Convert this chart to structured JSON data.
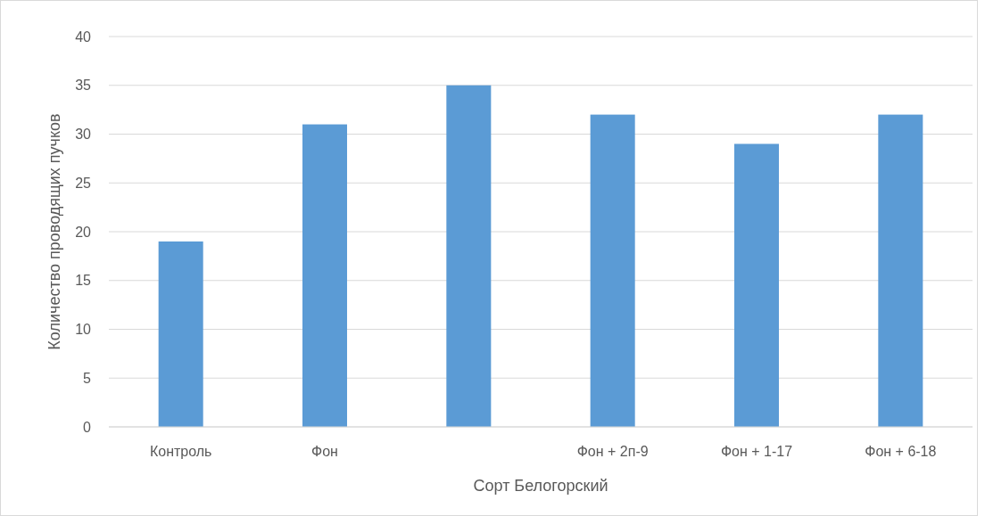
{
  "chart_data": {
    "type": "bar",
    "xlabel": "Сорт Белогорский",
    "ylabel": "Количество проводящих пучков",
    "categories": [
      "Контроль",
      "Фон",
      null,
      "Фон + 2п-9",
      "Фон + 1-17",
      "Фон + 6-18"
    ],
    "values": [
      19,
      31,
      35,
      32,
      29,
      32
    ],
    "color": "#5b9bd5",
    "ylim": [
      0,
      40
    ],
    "yticks": [
      0,
      5,
      10,
      15,
      20,
      25,
      30,
      35,
      40
    ],
    "grid": "y"
  }
}
